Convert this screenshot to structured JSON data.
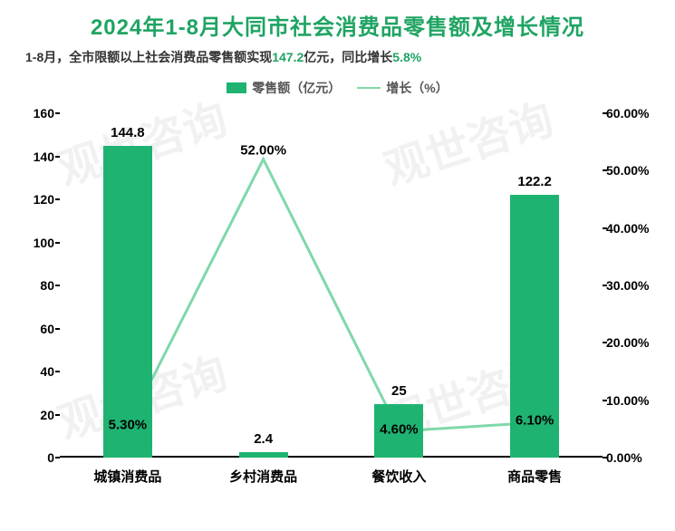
{
  "title": {
    "text": "2024年1-8月大同市社会消费品零售额及增长情况",
    "color": "#1fa463",
    "fontsize": 24
  },
  "subtitle": {
    "prefix": "1-8月，全市限额以上社会消费品零售额实现",
    "value1": "147.2",
    "mid": "亿元，同比增长",
    "value2": "5.8%",
    "text_color": "#333333",
    "highlight_color": "#1fa463"
  },
  "legend": {
    "bar_label": "零售额（亿元）",
    "line_label": "增长（%）",
    "bar_color": "#1fb371",
    "line_color": "#7fd8a8",
    "text_color": "#555555"
  },
  "chart": {
    "type": "bar+line",
    "categories": [
      "城镇消费品",
      "乡村消费品",
      "餐饮收入",
      "商品零售"
    ],
    "bar_values": [
      144.8,
      2.4,
      25,
      122.2
    ],
    "line_values_pct": [
      5.3,
      52.0,
      4.6,
      6.1
    ],
    "bar_value_labels": [
      "144.8",
      "2.4",
      "25",
      "122.2"
    ],
    "line_value_labels": [
      "5.30%",
      "52.00%",
      "4.60%",
      "6.10%"
    ],
    "bar_color": "#1fb371",
    "line_color": "#7fd8a8",
    "line_width": 3,
    "bar_width_ratio": 0.36,
    "left_axis": {
      "min": 0,
      "max": 160,
      "step": 20,
      "ticks": [
        0,
        20,
        40,
        60,
        80,
        100,
        120,
        140,
        160
      ],
      "tick_labels": [
        "0",
        "20",
        "40",
        "60",
        "80",
        "100",
        "120",
        "140",
        "160"
      ]
    },
    "right_axis": {
      "min": 0,
      "max": 60,
      "step": 10,
      "ticks": [
        0,
        10,
        20,
        30,
        40,
        50,
        60
      ],
      "tick_labels": [
        "0.00%",
        "10.00%",
        "20.00%",
        "30.00%",
        "40.00%",
        "50.00%",
        "60.00%"
      ]
    },
    "label_fontsize": 15,
    "axis_label_fontsize": 14,
    "cat_label_fontsize": 15,
    "background_color": "#ffffff",
    "axis_color": "#000000"
  },
  "watermark": {
    "text": "观世咨询"
  }
}
